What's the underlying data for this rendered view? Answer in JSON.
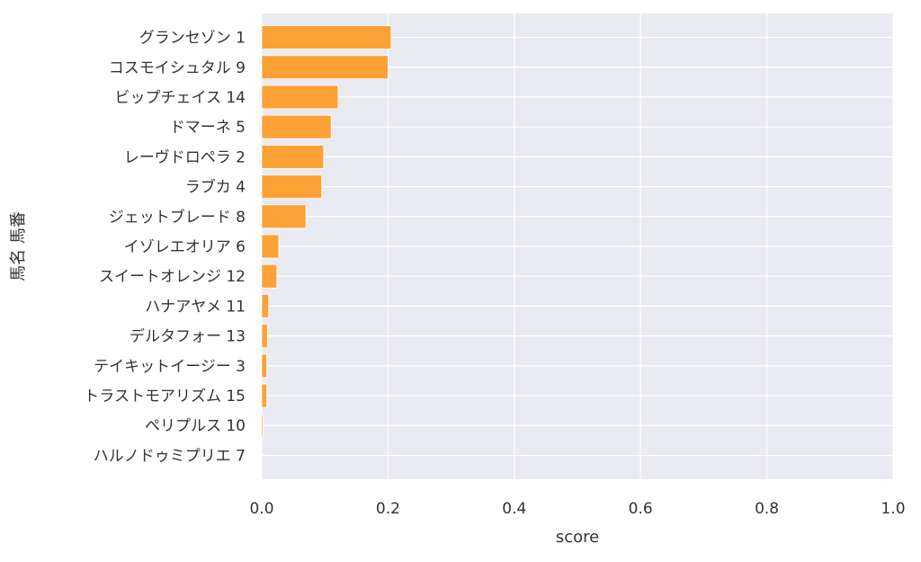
{
  "chart_data": {
    "type": "bar",
    "orientation": "horizontal",
    "categories": [
      "グランセゾン 1",
      "コスモイシュタル 9",
      "ビップチェイス 14",
      "ドマーネ 5",
      "レーヴドロペラ 2",
      "ラブカ 4",
      "ジェットブレード 8",
      "イゾレエオリア 6",
      "スイートオレンジ 12",
      "ハナアヤメ 11",
      "デルタフォー 13",
      "テイキットイージー 3",
      "トラストモアリズム 15",
      "ペリプルス 10",
      "ハルノドゥミプリエ 7"
    ],
    "values": [
      0.205,
      0.2,
      0.121,
      0.11,
      0.098,
      0.095,
      0.07,
      0.027,
      0.024,
      0.011,
      0.009,
      0.008,
      0.008,
      0.002,
      0.0
    ],
    "xlabel": "score",
    "ylabel": "馬名 馬番",
    "xlim": [
      0,
      1.0
    ],
    "xticks": [
      "0.0",
      "0.2",
      "0.4",
      "0.6",
      "0.8",
      "1.0"
    ],
    "grid": true,
    "colors": {
      "bar": "#fca135",
      "plot_background": "#eaeaf2",
      "grid": "#ffffff",
      "text": "#333333"
    }
  }
}
